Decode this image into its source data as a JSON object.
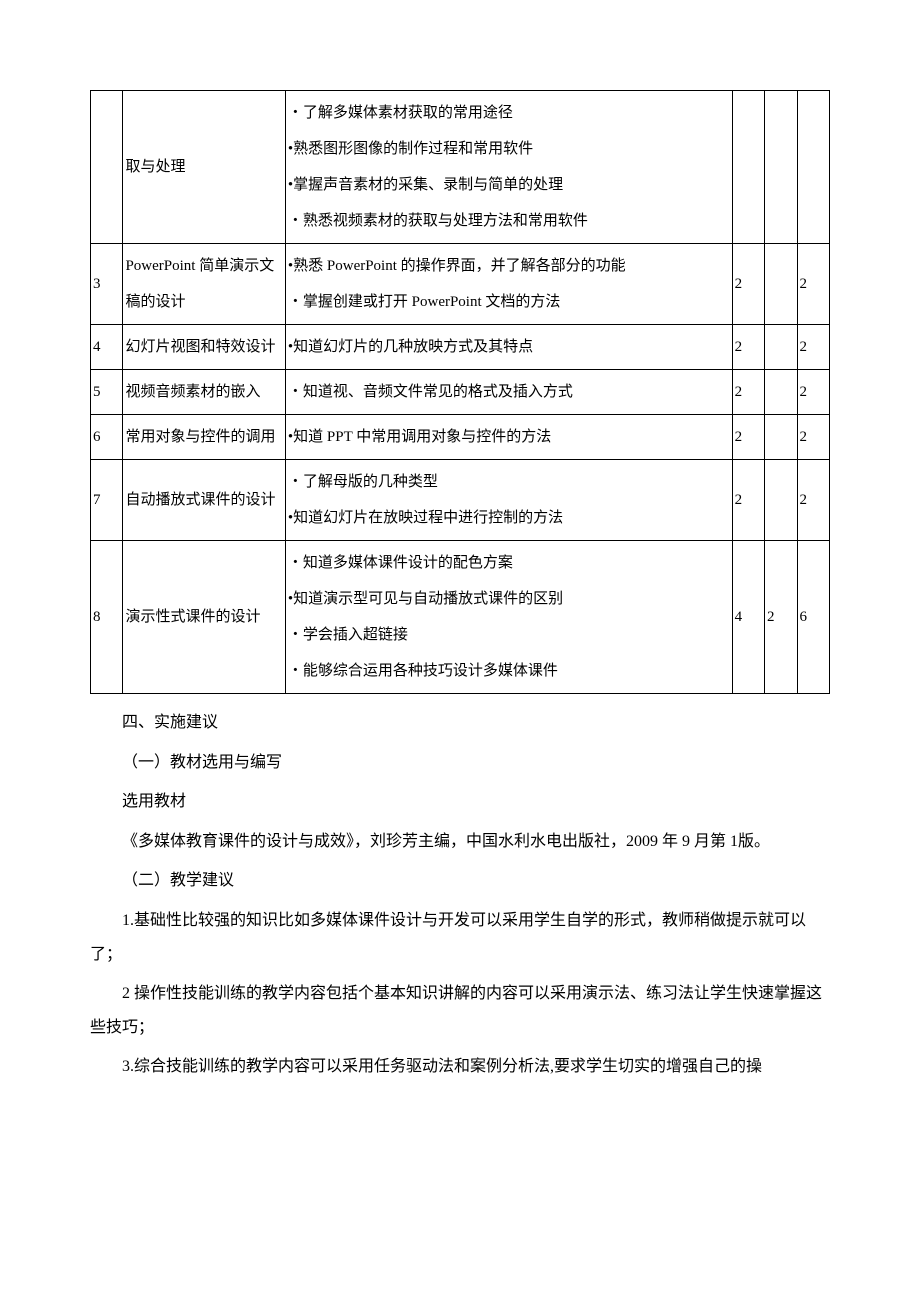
{
  "table": {
    "rows": [
      {
        "idx": "",
        "title": "取与处理",
        "content": [
          "・了解多媒体素材获取的常用途径",
          "•熟悉图形图像的制作过程和常用软件",
          "•掌握声音素材的采集、录制与简单的处理",
          "・熟悉视频素材的获取与处理方法和常用软件"
        ],
        "c1": "",
        "c2": "",
        "c3": ""
      },
      {
        "idx": "3",
        "title": "PowerPoint 简单演示文稿的设计",
        "content": [
          "•熟悉 PowerPoint 的操作界面，并了解各部分的功能",
          "・掌握创建或打开 PowerPoint 文档的方法"
        ],
        "c1": "2",
        "c2": "",
        "c3": "2"
      },
      {
        "idx": "4",
        "title": "幻灯片视图和特效设计",
        "content": [
          "•知道幻灯片的几种放映方式及其特点"
        ],
        "c1": "2",
        "c2": "",
        "c3": "2"
      },
      {
        "idx": "5",
        "title": "视频音频素材的嵌入",
        "content": [
          "・知道视、音频文件常见的格式及插入方式"
        ],
        "c1": "2",
        "c2": "",
        "c3": "2"
      },
      {
        "idx": "6",
        "title": "常用对象与控件的调用",
        "content": [
          "•知道 PPT 中常用调用对象与控件的方法"
        ],
        "c1": "2",
        "c2": "",
        "c3": "2"
      },
      {
        "idx": "7",
        "title": "自动播放式课件的设计",
        "content": [
          "・了解母版的几种类型",
          "•知道幻灯片在放映过程中进行控制的方法"
        ],
        "c1": "2",
        "c2": "",
        "c3": "2"
      },
      {
        "idx": "8",
        "title": "演示性式课件的设计",
        "content": [
          "・知道多媒体课件设计的配色方案",
          "•知道演示型可见与自动播放式课件的区别",
          "・学会插入超链接",
          "・能够综合运用各种技巧设计多媒体课件"
        ],
        "c1": "4",
        "c2": "2",
        "c3": "6"
      }
    ]
  },
  "sections": {
    "h4": "四、实施建议",
    "s1_title": "（一）教材选用与编写",
    "s1_sub": "选用教材",
    "s1_body": "《多媒体教育课件的设计与成效》，刘珍芳主编，中国水利水电出版社，2009 年 9 月第 1版。",
    "s2_title": "（二）教学建议",
    "s2_p1": "1.基础性比较强的知识比如多媒体课件设计与开发可以采用学生自学的形式，教师稍做提示就可以了；",
    "s2_p2": "2 操作性技能训练的教学内容包括个基本知识讲解的内容可以采用演示法、练习法让学生快速掌握这些技巧；",
    "s2_p3": "3.综合技能训练的教学内容可以采用任务驱动法和案例分析法,要求学生切实的增强自己的操"
  }
}
